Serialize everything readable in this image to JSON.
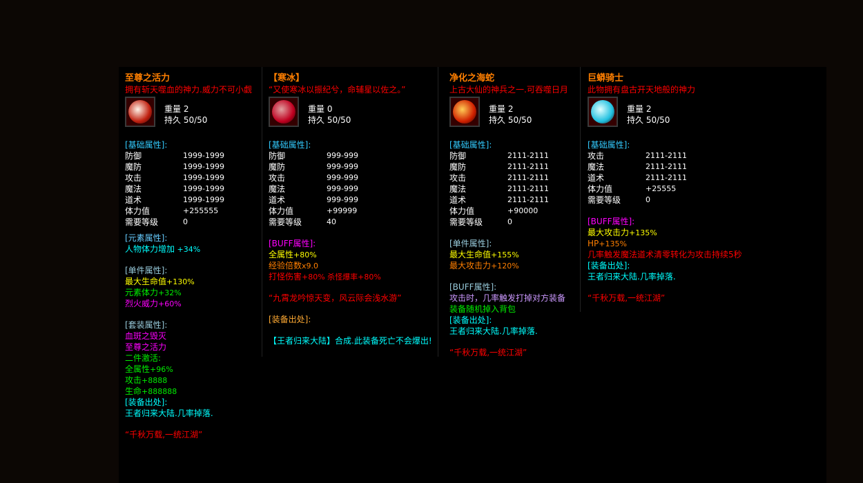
{
  "panels": [
    {
      "title": "至尊之活力",
      "title_color": "#ff7f00",
      "desc": "拥有斩天噬血的神力.威力不可小觑",
      "icon": "red-white-orb-icon",
      "icon_colors": [
        "#fff3e8",
        "#c02010"
      ],
      "weight_label": "重量",
      "weight": "2",
      "durability_label": "持久",
      "durability": "50/50",
      "lines": [
        {
          "t": "[基础属性]:",
          "c": "#33ccff"
        },
        {
          "t": "防御",
          "v": "1999-1999"
        },
        {
          "t": "魔防",
          "v": "1999-1999"
        },
        {
          "t": "攻击",
          "v": "1999-1999"
        },
        {
          "t": "魔法",
          "v": "1999-1999"
        },
        {
          "t": "道术",
          "v": "1999-1999"
        },
        {
          "t": "体力值",
          "v": "+255555"
        },
        {
          "t": "需要等级",
          "v": "0"
        },
        {
          "gap": 8
        },
        {
          "t": "[元素属性]:",
          "c": "#66ccff"
        },
        {
          "t": "人物体力增加",
          "s": "   +34%",
          "c": "#00ffff"
        },
        {
          "gap": 16
        },
        {
          "t": "[单件属性]:",
          "c": "#99ccdd"
        },
        {
          "t": "最大生命值",
          "s": "+130%",
          "c": "#ffff00"
        },
        {
          "t": "元素体力",
          "s": "+32%",
          "c": "#00ee00"
        },
        {
          "t": "烈火威力",
          "s": "+60%",
          "c": "#ff00ff"
        },
        {
          "gap": 16
        },
        {
          "t": "[套装属性]:",
          "c": "#99ccdd"
        },
        {
          "t": "血斑之毁灭",
          "c": "#ff00ff"
        },
        {
          "t": "至尊之活力",
          "c": "#ff00ff"
        },
        {
          "t": "二件激活:",
          "c": "#00ee00"
        },
        {
          "t": "全属性",
          "s": "+96%",
          "c": "#00ee00"
        },
        {
          "t": "攻击",
          "s": "+8888",
          "c": "#00ee00"
        },
        {
          "t": "生命",
          "s": "+888888",
          "c": "#00ee00"
        },
        {
          "t": "[装备出处]:",
          "c": "#00ffff"
        },
        {
          "t": "王者归来大陆.几率掉落.",
          "c": "#00ffff"
        },
        {
          "gap": 16
        },
        {
          "t": "“千秋万载,一统江湖”",
          "c": "#ff0000"
        }
      ]
    },
    {
      "title": "【寒冰】",
      "title_color": "#ff7f00",
      "desc": "“又使寒冰以振纪兮，命辅星以佐之。”",
      "icon": "crimson-cube-icon",
      "icon_colors": [
        "#e0a0a0",
        "#c00020"
      ],
      "weight_label": "重量",
      "weight": "0",
      "durability_label": "持久",
      "durability": "50/50",
      "lines": [
        {
          "t": "[基础属性]:",
          "c": "#33ccff"
        },
        {
          "t": "防御",
          "v": "999-999"
        },
        {
          "t": "魔防",
          "v": "999-999"
        },
        {
          "t": "攻击",
          "v": "999-999"
        },
        {
          "t": "魔法",
          "v": "999-999"
        },
        {
          "t": "道术",
          "v": "999-999"
        },
        {
          "t": "体力值",
          "v": "+99999"
        },
        {
          "t": "需要等级",
          "v": "40"
        },
        {
          "gap": 16
        },
        {
          "t": "[BUFF属性]:",
          "c": "#ff00ff"
        },
        {
          "t": "全属性",
          "s": "+80%",
          "c": "#ffff00"
        },
        {
          "t": "经验倍数",
          "s": "x9.0",
          "c": "#ff7f00"
        },
        {
          "t": "打怪伤害",
          "s": "+80%   杀怪爆率+80%",
          "c": "#ff0000"
        },
        {
          "gap": 16
        },
        {
          "t": "“九霄龙吟惊天变，风云际会浅水游”",
          "c": "#ff0000"
        },
        {
          "gap": 16
        },
        {
          "t": "[装备出处]:",
          "c": "#ffaa33"
        },
        {
          "gap": 16
        },
        {
          "t": "【王者归来大陆】合成.此装备死亡不会爆出!",
          "c": "#00ffff"
        }
      ]
    },
    {
      "title": "净化之海蛇",
      "title_color": "#ff7f00",
      "desc": "上古大仙的神兵之一.可吞噬日月",
      "icon": "flame-serpent-icon",
      "icon_colors": [
        "#ffcc55",
        "#d02000"
      ],
      "weight_label": "重量",
      "weight": "2",
      "durability_label": "持久",
      "durability": "50/50",
      "lines": [
        {
          "t": "[基础属性]:",
          "c": "#33ccff"
        },
        {
          "t": "防御",
          "v": "2111-2111"
        },
        {
          "t": "魔防",
          "v": "2111-2111"
        },
        {
          "t": "攻击",
          "v": "2111-2111"
        },
        {
          "t": "魔法",
          "v": "2111-2111"
        },
        {
          "t": "道术",
          "v": "2111-2111"
        },
        {
          "t": "体力值",
          "v": "+90000"
        },
        {
          "t": "需要等级",
          "v": "0"
        },
        {
          "gap": 16
        },
        {
          "t": "[单件属性]:",
          "c": "#99ccdd"
        },
        {
          "t": "最大生命值",
          "s": "+155%",
          "c": "#ffff00"
        },
        {
          "t": "最大攻击力",
          "s": "+120%",
          "c": "#ff7f00"
        },
        {
          "gap": 16
        },
        {
          "t": "[BUFF属性]:",
          "c": "#99ccdd"
        },
        {
          "t": "攻击时，几率触发打掉对方装备",
          "c": "#cc99ff"
        },
        {
          "t": "装备随机掉入背包",
          "c": "#00ee00"
        },
        {
          "t": "[装备出处]:",
          "c": "#00ffff"
        },
        {
          "t": "王者归来大陆.几率掉落.",
          "c": "#00ffff"
        },
        {
          "gap": 16
        },
        {
          "t": "“千秋万载,一统江湖”",
          "c": "#ff0000"
        }
      ]
    },
    {
      "title": "巨蟒骑士",
      "title_color": "#ff7f00",
      "desc": "此物拥有盘古开天地般的神力",
      "icon": "ice-crystal-icon",
      "icon_colors": [
        "#e0ffff",
        "#20c0e0"
      ],
      "weight_label": "重量",
      "weight": "2",
      "durability_label": "持久",
      "durability": "50/50",
      "lines": [
        {
          "t": "[基础属性]:",
          "c": "#33ccff"
        },
        {
          "t": "攻击",
          "v": "2111-2111"
        },
        {
          "t": "魔法",
          "v": "2111-2111"
        },
        {
          "t": "道术",
          "v": "2111-2111"
        },
        {
          "t": "体力值",
          "v": "+25555"
        },
        {
          "t": "需要等级",
          "v": "0"
        },
        {
          "gap": 16
        },
        {
          "t": "[BUFF属性]:",
          "c": "#ff00ff"
        },
        {
          "t": "最大攻击力",
          "s": "+135%",
          "c": "#ffff00"
        },
        {
          "t": "HP",
          "s": "+135%",
          "c": "#ff7f00"
        },
        {
          "t": "几率触发魔法道术清零转化为攻击持续5秒",
          "c": "#ff0000"
        },
        {
          "t": "[装备出处]:",
          "c": "#00ffff"
        },
        {
          "t": "王者归来大陆.几率掉落.",
          "c": "#00ffff"
        },
        {
          "gap": 16
        },
        {
          "t": "“千秋万载,一统江湖”",
          "c": "#ff0000"
        }
      ]
    }
  ]
}
